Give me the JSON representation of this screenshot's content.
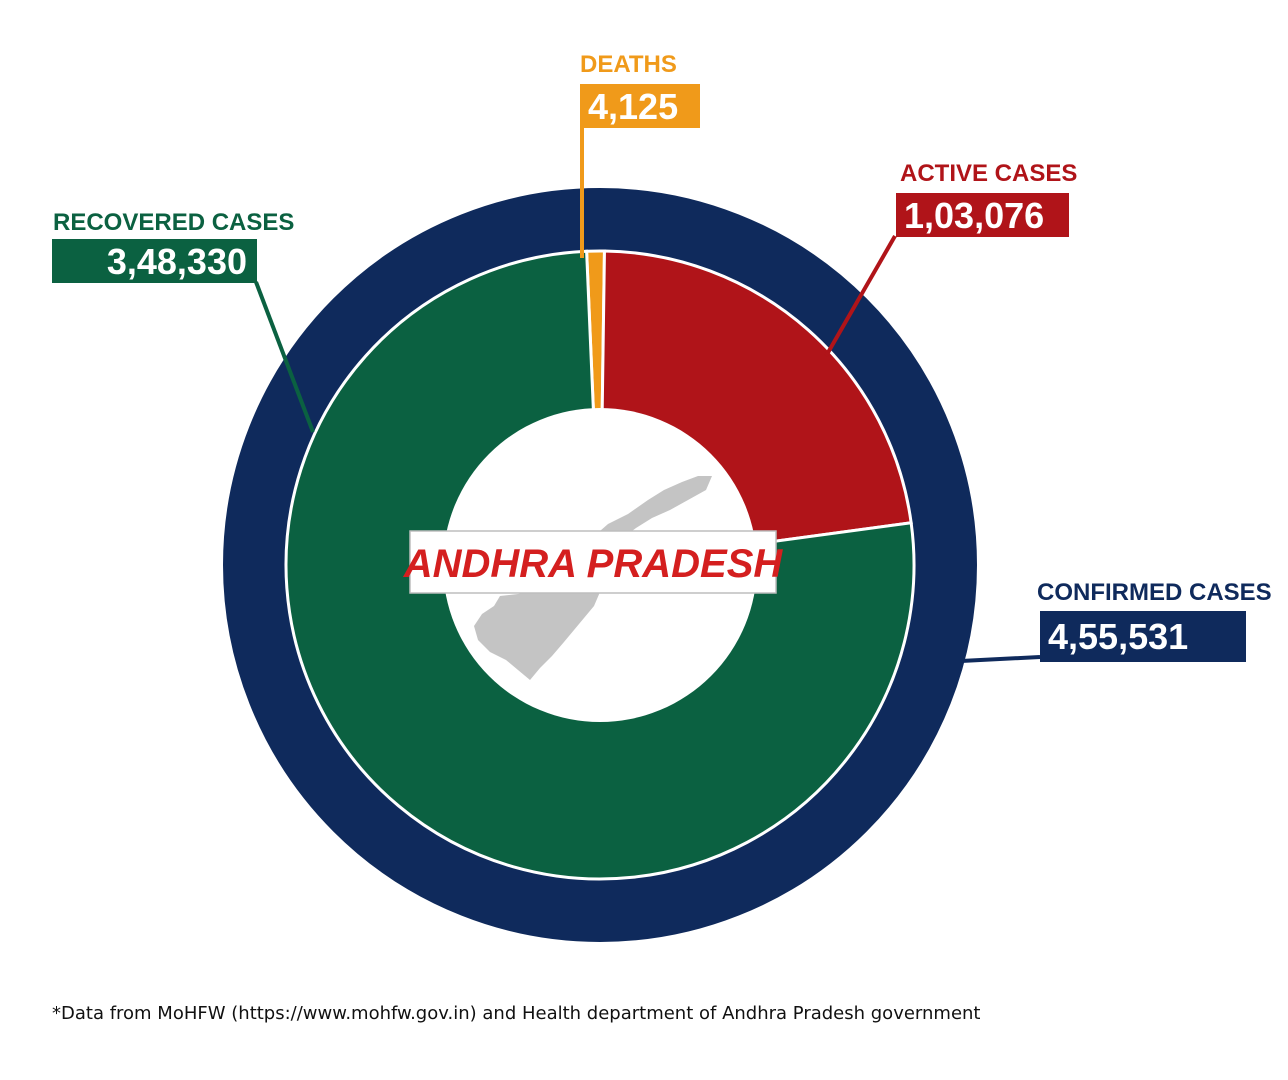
{
  "chart_data": {
    "type": "pie",
    "center_label": "ANDHRA PRADESH",
    "outer_ring": {
      "label": "CONFIRMED CASES",
      "value": 455531,
      "display": "4,55,531",
      "color": "#0f2a5c"
    },
    "slices": [
      {
        "name": "DEATHS",
        "value": 4125,
        "display": "4,125",
        "color": "#f09a1a"
      },
      {
        "name": "ACTIVE CASES",
        "value": 103076,
        "display": "1,03,076",
        "color": "#b01419"
      },
      {
        "name": "RECOVERED CASES",
        "value": 348330,
        "display": "3,48,330",
        "color": "#0b6141"
      }
    ],
    "map_color": "#c4c4c4"
  },
  "footnote": "*Data from MoHFW (https://www.mohfw.gov.in) and Health department of Andhra Pradesh government"
}
